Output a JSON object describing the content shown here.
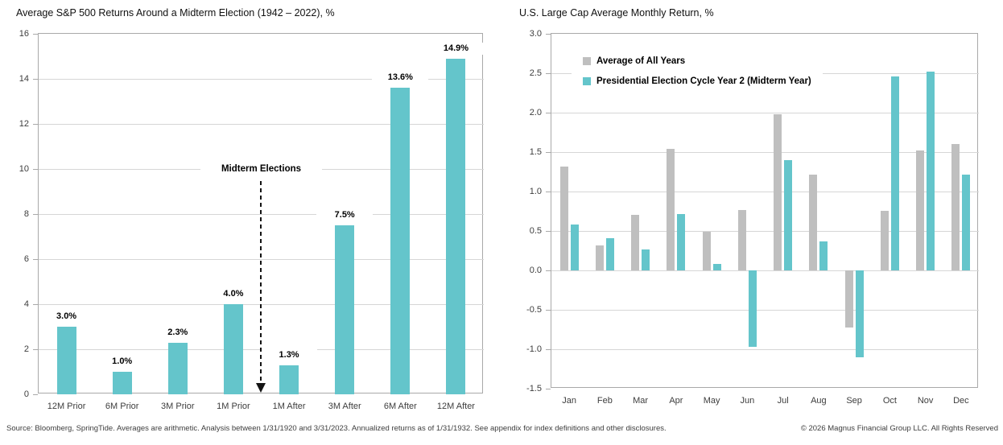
{
  "colors": {
    "teal": "#64C5CB",
    "gray": "#BFBFBF",
    "gridline": "#D6D6D6",
    "plot_border": "#A9A9A9",
    "arrow": "#141414"
  },
  "chart_data": [
    {
      "type": "bar",
      "title": "Average S&P 500 Returns Around a Midterm Election (1942 – 2022), %",
      "categories": [
        "12M Prior",
        "6M Prior",
        "3M Prior",
        "1M Prior",
        "1M After",
        "3M After",
        "6M After",
        "12M After"
      ],
      "values": [
        3.0,
        1.0,
        2.3,
        4.0,
        1.3,
        7.5,
        13.6,
        14.9
      ],
      "bar_labels": [
        "3.0%",
        "1.0%",
        "2.3%",
        "4.0%",
        "1.3%",
        "7.5%",
        "13.6%",
        "14.9%"
      ],
      "ylim": [
        0,
        16
      ],
      "ytick_step": 2,
      "ytick_decimals": 0,
      "grid": true,
      "bar_color_key": "teal",
      "annotation": {
        "text": "Midterm Elections",
        "position": "between 1M Prior and 1M After",
        "arrow": "dashed-down"
      }
    },
    {
      "type": "bar",
      "title": "U.S. Large Cap Average Monthly Return, %",
      "categories": [
        "Jan",
        "Feb",
        "Mar",
        "Apr",
        "May",
        "Jun",
        "Jul",
        "Aug",
        "Sep",
        "Oct",
        "Nov",
        "Dec"
      ],
      "series": [
        {
          "name": "Average of All Years",
          "color_key": "gray",
          "values": [
            1.32,
            0.32,
            0.7,
            1.54,
            0.49,
            0.77,
            1.98,
            1.21,
            -0.72,
            0.76,
            1.52,
            1.6
          ]
        },
        {
          "name": "Presidential Election Cycle Year 2 (Midterm Year)",
          "color_key": "teal",
          "values": [
            0.58,
            0.41,
            0.27,
            0.71,
            0.08,
            -0.97,
            1.4,
            0.37,
            -1.1,
            2.46,
            2.52,
            1.21
          ]
        }
      ],
      "ylim": [
        -1.5,
        3.0
      ],
      "ytick_step": 0.5,
      "ytick_decimals": 1,
      "grid": true,
      "legend_position": "top-left-inside"
    }
  ],
  "footer": {
    "source": "Source: Bloomberg, SpringTide. Averages are arithmetic. Analysis between 1/31/1920 and 3/31/2023. Annualized returns as of 1/31/1932. See appendix for index definitions and other disclosures.",
    "copyright": "© 2026 Magnus Financial Group LLC. All Rights Reserved"
  }
}
